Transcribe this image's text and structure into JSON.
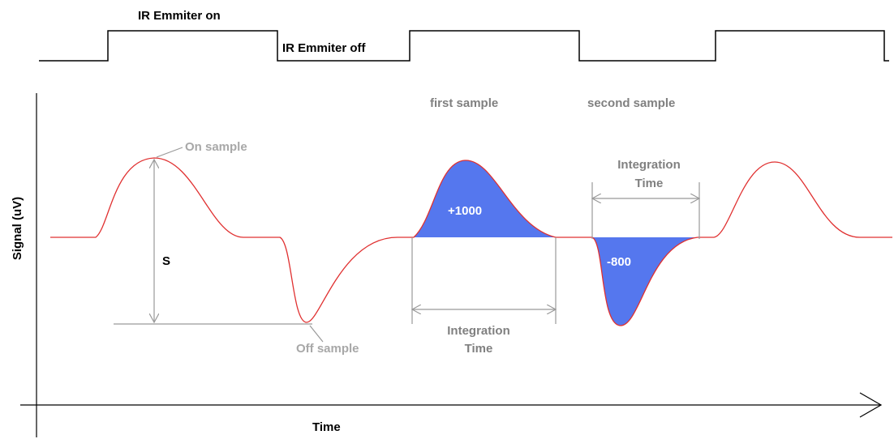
{
  "emitter": {
    "on_label": "IR Emmiter on",
    "off_label": "IR Emmiter off"
  },
  "axes": {
    "y_label": "Signal (uV)",
    "x_label": "Time"
  },
  "annotations": {
    "on_sample": "On sample",
    "off_sample": "Off sample",
    "s": "S",
    "first_sample": "first sample",
    "second_sample": "second sample",
    "integration_time_1": [
      "Integration",
      "Time"
    ],
    "integration_time_2": [
      "Integration",
      "Time"
    ]
  },
  "areas": {
    "positive": "+1000",
    "negative": "-800"
  }
}
